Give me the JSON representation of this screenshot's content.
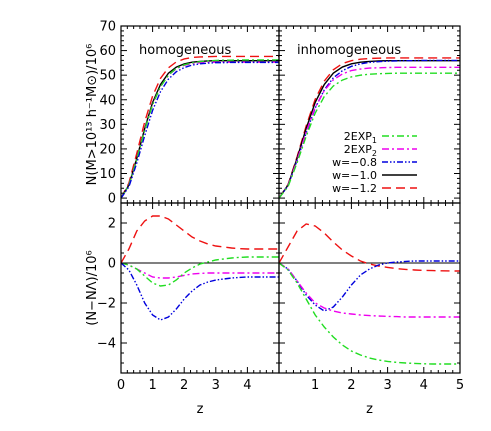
{
  "chart_data": {
    "type": "line",
    "x": [
      0,
      0.25,
      0.5,
      0.75,
      1,
      1.25,
      1.5,
      1.75,
      2,
      2.25,
      2.5,
      2.75,
      3,
      3.25,
      3.5,
      3.75,
      4,
      4.25,
      4.5,
      4.75,
      5
    ],
    "xlabel": "z",
    "xlim": [
      0,
      5
    ],
    "xticks": [
      "0",
      "1",
      "2",
      "3",
      "4",
      "5"
    ],
    "legend": {
      "placement": "lower-right of top-right panel",
      "entries": [
        {
          "label": "2EXP",
          "sub": "1",
          "color": "#22dd22",
          "dash": "dash-dot"
        },
        {
          "label": "2EXP",
          "sub": "2",
          "color": "#ee00ee",
          "dash": "dash-dot"
        },
        {
          "label": "w=−0.8",
          "sub": "",
          "color": "#0000dd",
          "dash": "dash-dot-dot"
        },
        {
          "label": "w=−1.0",
          "sub": "",
          "color": "#000000",
          "dash": "solid"
        },
        {
          "label": "w=−1.2",
          "sub": "",
          "color": "#ee1111",
          "dash": "dash"
        }
      ]
    },
    "panels": [
      {
        "id": "top-left",
        "title": "homogeneous",
        "row": "top",
        "ylabel": "N(M>10¹³ h⁻¹M⊙)/10⁶",
        "ylim": [
          -2,
          70
        ],
        "yticks": [
          "0",
          "10",
          "20",
          "30",
          "40",
          "50",
          "60",
          "70"
        ],
        "series": [
          {
            "key": "w-1.2",
            "values": [
              0,
              6.1,
              18.2,
              31.0,
              41.5,
              48.7,
              53.0,
              55.4,
              56.6,
              57.2,
              57.4,
              57.5,
              57.6,
              57.6,
              57.6,
              57.6,
              57.6,
              57.6,
              57.6,
              57.6,
              57.6
            ]
          },
          {
            "key": "w-1.0",
            "values": [
              0,
              5.3,
              16.2,
              28.3,
              38.9,
              46.2,
              50.8,
              53.3,
              54.6,
              55.3,
              55.6,
              55.8,
              55.9,
              55.9,
              55.9,
              55.9,
              55.9,
              55.9,
              55.9,
              55.9,
              55.9
            ]
          },
          {
            "key": "2EXP2",
            "values": [
              0,
              5.2,
              15.9,
              27.7,
              38.1,
              45.3,
              50.0,
              52.6,
              54.0,
              54.7,
              55.0,
              55.2,
              55.3,
              55.3,
              55.3,
              55.3,
              55.3,
              55.3,
              55.3,
              55.3,
              55.3
            ]
          },
          {
            "key": "2EXP1",
            "values": [
              0,
              5.2,
              15.8,
              27.6,
              38.0,
              45.3,
              50.0,
              52.8,
              54.2,
              55.0,
              55.5,
              55.8,
              56.0,
              56.1,
              56.1,
              56.2,
              56.2,
              56.2,
              56.2,
              56.2,
              56.2
            ]
          },
          {
            "key": "w-0.8",
            "values": [
              0,
              4.6,
              14.3,
              25.4,
              35.7,
              43.3,
              48.4,
              51.4,
              53.1,
              54.1,
              54.6,
              54.9,
              55.1,
              55.1,
              55.2,
              55.2,
              55.2,
              55.2,
              55.2,
              55.2,
              55.2
            ]
          }
        ]
      },
      {
        "id": "top-right",
        "title": "inhomogeneous",
        "row": "top",
        "ylim": [
          -2,
          70
        ],
        "series": [
          {
            "key": "w-1.2",
            "values": [
              0,
              5.5,
              16.8,
              29.3,
              40.2,
              47.6,
              52.2,
              54.7,
              55.9,
              56.5,
              56.8,
              56.9,
              57.0,
              57.0,
              57.0,
              57.0,
              57.0,
              57.0,
              57.0,
              57.0,
              57.0
            ]
          },
          {
            "key": "w-1.0",
            "values": [
              0,
              5.3,
              16.2,
              28.3,
              38.9,
              46.2,
              50.8,
              53.3,
              54.6,
              55.3,
              55.6,
              55.8,
              55.9,
              55.9,
              55.9,
              55.9,
              55.9,
              55.9,
              55.9,
              55.9,
              55.9
            ]
          },
          {
            "key": "w-0.8",
            "values": [
              0,
              5.0,
              15.3,
              26.5,
              36.6,
              44.0,
              48.9,
              51.8,
              53.6,
              54.6,
              55.2,
              55.5,
              55.7,
              55.8,
              55.9,
              55.9,
              56.0,
              56.0,
              56.0,
              56.0,
              56.0
            ]
          },
          {
            "key": "2EXP2",
            "values": [
              0,
              5.0,
              15.4,
              26.9,
              36.9,
              43.7,
              48.1,
              50.5,
              51.9,
              52.5,
              52.9,
              53.0,
              53.1,
              53.2,
              53.2,
              53.2,
              53.2,
              53.2,
              53.2,
              53.2,
              53.2
            ]
          },
          {
            "key": "2EXP1",
            "values": [
              0,
              4.7,
              14.4,
              25.1,
              34.6,
              41.3,
              45.6,
              48.0,
              49.3,
              50.0,
              50.4,
              50.6,
              50.7,
              50.8,
              50.8,
              50.8,
              50.8,
              50.8,
              50.8,
              50.8,
              50.8
            ]
          }
        ]
      },
      {
        "id": "bottom-left",
        "row": "bottom",
        "ylabel": "(N−NΛ)/10⁶",
        "ylim": [
          -5.5,
          3
        ],
        "yticks": [
          "−4",
          "−2",
          "0",
          "2"
        ],
        "series": [
          {
            "key": "w-1.0",
            "values": [
              0,
              0,
              0,
              0,
              0,
              0,
              0,
              0,
              0,
              0,
              0,
              0,
              0,
              0,
              0,
              0,
              0,
              0,
              0,
              0,
              0
            ]
          },
          {
            "key": "w-1.2",
            "values": [
              0,
              0.7,
              1.6,
              2.1,
              2.35,
              2.35,
              2.2,
              1.9,
              1.6,
              1.3,
              1.1,
              0.95,
              0.85,
              0.8,
              0.75,
              0.72,
              0.7,
              0.7,
              0.7,
              0.7,
              0.7
            ]
          },
          {
            "key": "2EXP2",
            "values": [
              0,
              -0.1,
              -0.3,
              -0.5,
              -0.7,
              -0.75,
              -0.75,
              -0.7,
              -0.62,
              -0.55,
              -0.52,
              -0.5,
              -0.5,
              -0.5,
              -0.5,
              -0.5,
              -0.5,
              -0.5,
              -0.5,
              -0.5,
              -0.5
            ]
          },
          {
            "key": "2EXP1",
            "values": [
              0,
              -0.1,
              -0.3,
              -0.65,
              -1.0,
              -1.15,
              -1.1,
              -0.85,
              -0.5,
              -0.25,
              -0.05,
              0.05,
              0.15,
              0.2,
              0.25,
              0.28,
              0.3,
              0.3,
              0.3,
              0.3,
              0.3
            ]
          },
          {
            "key": "w-0.8",
            "values": [
              0,
              -0.35,
              -1.1,
              -2.0,
              -2.6,
              -2.85,
              -2.7,
              -2.3,
              -1.8,
              -1.4,
              -1.1,
              -0.95,
              -0.85,
              -0.8,
              -0.75,
              -0.72,
              -0.7,
              -0.7,
              -0.7,
              -0.7,
              -0.7
            ]
          }
        ]
      },
      {
        "id": "bottom-right",
        "row": "bottom",
        "ylim": [
          -5.5,
          3
        ],
        "series": [
          {
            "key": "w-1.0",
            "values": [
              0,
              0,
              0,
              0,
              0,
              0,
              0,
              0,
              0,
              0,
              0,
              0,
              0,
              0,
              0,
              0,
              0,
              0,
              0,
              0,
              0
            ]
          },
          {
            "key": "w-1.2",
            "values": [
              0,
              0.8,
              1.6,
              1.95,
              1.85,
              1.5,
              1.05,
              0.65,
              0.35,
              0.1,
              -0.05,
              -0.15,
              -0.22,
              -0.28,
              -0.32,
              -0.35,
              -0.37,
              -0.38,
              -0.39,
              -0.4,
              -0.4
            ]
          },
          {
            "key": "w-0.8",
            "values": [
              0,
              -0.3,
              -0.9,
              -1.6,
              -2.1,
              -2.4,
              -2.2,
              -1.7,
              -1.1,
              -0.6,
              -0.3,
              -0.1,
              0,
              0.05,
              0.08,
              0.1,
              0.1,
              0.1,
              0.1,
              0.1,
              0.1
            ]
          },
          {
            "key": "2EXP2",
            "values": [
              0,
              -0.3,
              -0.9,
              -1.5,
              -2.0,
              -2.25,
              -2.4,
              -2.5,
              -2.55,
              -2.6,
              -2.63,
              -2.65,
              -2.67,
              -2.68,
              -2.7,
              -2.7,
              -2.7,
              -2.7,
              -2.7,
              -2.7,
              -2.7
            ]
          },
          {
            "key": "2EXP1",
            "values": [
              0,
              -0.35,
              -1.0,
              -1.8,
              -2.6,
              -3.2,
              -3.7,
              -4.1,
              -4.4,
              -4.6,
              -4.75,
              -4.85,
              -4.92,
              -4.97,
              -5.0,
              -5.02,
              -5.04,
              -5.05,
              -5.05,
              -5.05,
              -5.05
            ]
          }
        ]
      }
    ]
  }
}
